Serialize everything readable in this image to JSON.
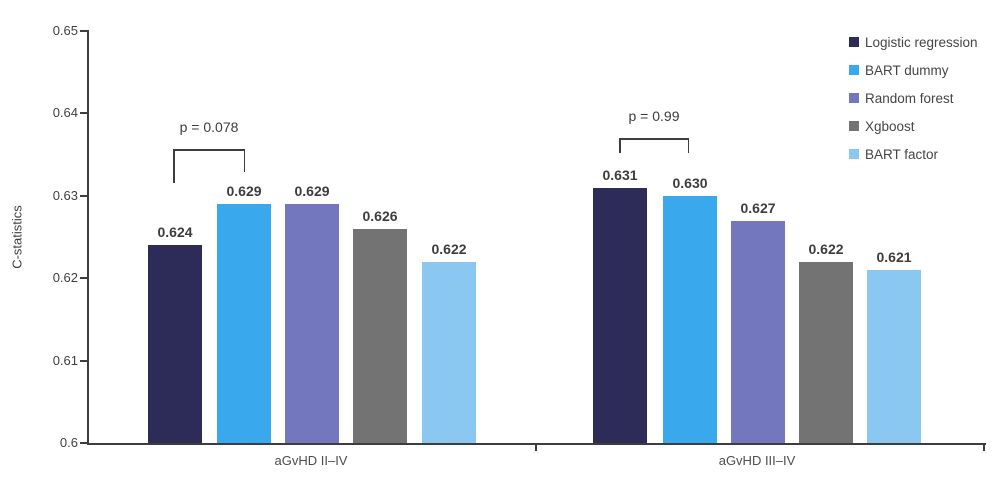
{
  "chart_data": {
    "type": "bar",
    "title": "",
    "ylabel": "C-statistics",
    "xlabel": "",
    "ylim": [
      0.6,
      0.65
    ],
    "yticks": [
      "0.6",
      "0.61",
      "0.62",
      "0.63",
      "0.64",
      "0.65"
    ],
    "grid": false,
    "legend_position": "top-right",
    "categories": [
      "aGvHD II–IV",
      "aGvHD III–IV"
    ],
    "series": [
      {
        "name": "Logistic regression",
        "color": "#2d2c58",
        "values": [
          0.624,
          0.631
        ]
      },
      {
        "name": "BART dummy",
        "color": "#3aa8ec",
        "values": [
          0.629,
          0.63
        ]
      },
      {
        "name": "Random forest",
        "color": "#7277be",
        "values": [
          0.629,
          0.627
        ]
      },
      {
        "name": "Xgboost",
        "color": "#737374",
        "values": [
          0.626,
          0.622
        ]
      },
      {
        "name": "BART factor",
        "color": "#8ac8f2",
        "values": [
          0.622,
          0.621
        ]
      }
    ],
    "bar_labels": [
      [
        "0.624",
        "0.629",
        "0.629",
        "0.626",
        "0.622"
      ],
      [
        "0.631",
        "0.630",
        "0.627",
        "0.622",
        "0.621"
      ]
    ],
    "annotations": [
      {
        "group_index": 0,
        "label": "p = 0.078",
        "between": [
          "Logistic regression",
          "BART dummy"
        ]
      },
      {
        "group_index": 1,
        "label": "p = 0.99",
        "between": [
          "Logistic regression",
          "BART dummy"
        ]
      }
    ]
  }
}
